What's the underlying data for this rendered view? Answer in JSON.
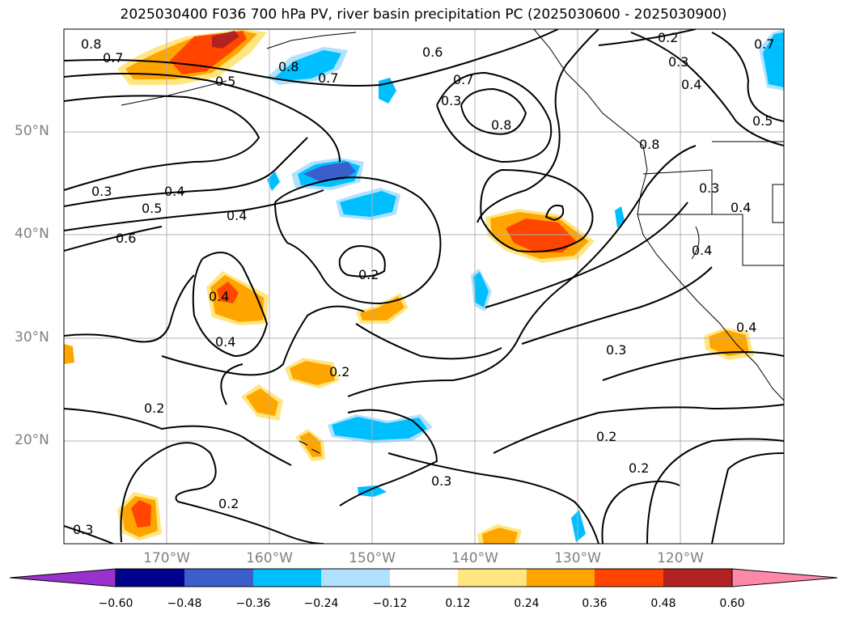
{
  "title": "2025030400 F036 700 hPa PV, river basin precipitation PC (2025030600 - 2025030900)",
  "latitude_labels": [
    "50°N",
    "40°N",
    "30°N",
    "20°N"
  ],
  "longitude_labels": [
    "170°W",
    "160°W",
    "150°W",
    "140°W",
    "130°W",
    "120°W"
  ],
  "contour_labels": [
    "0.8",
    "0.7",
    "0.5",
    "0.3",
    "0.4",
    "0.5",
    "0.6",
    "0.4",
    "0.2",
    "0.4",
    "0.4",
    "0.2",
    "0.2",
    "0.2",
    "0.3",
    "0.3",
    "0.6",
    "0.7",
    "0.8",
    "0.7",
    "0.8",
    "0.2",
    "0.3",
    "0.4",
    "0.5",
    "0.3",
    "0.4",
    "0.4",
    "0.4",
    "0.3",
    "0.2",
    "0.2",
    "0.3",
    "0.8",
    "0.7"
  ],
  "colorbar": {
    "ticks": [
      "−0.60",
      "−0.48",
      "−0.36",
      "−0.24",
      "−0.12",
      "0.12",
      "0.24",
      "0.36",
      "0.48",
      "0.60"
    ],
    "colors": [
      "#9932cc",
      "#00008b",
      "#3a5fcd",
      "#00bfff",
      "#b0e2ff",
      "#ffffff",
      "#ffe680",
      "#ffa500",
      "#ff4500",
      "#b22222",
      "#ff88aa"
    ]
  },
  "legend_colors": {
    "blue_light": "#b0e2ff",
    "blue": "#00bfff",
    "blue_dark": "#3a5fcd",
    "yellow": "#ffe680",
    "orange": "#ffa500",
    "red": "#ff4500",
    "dark_red": "#b22222"
  }
}
